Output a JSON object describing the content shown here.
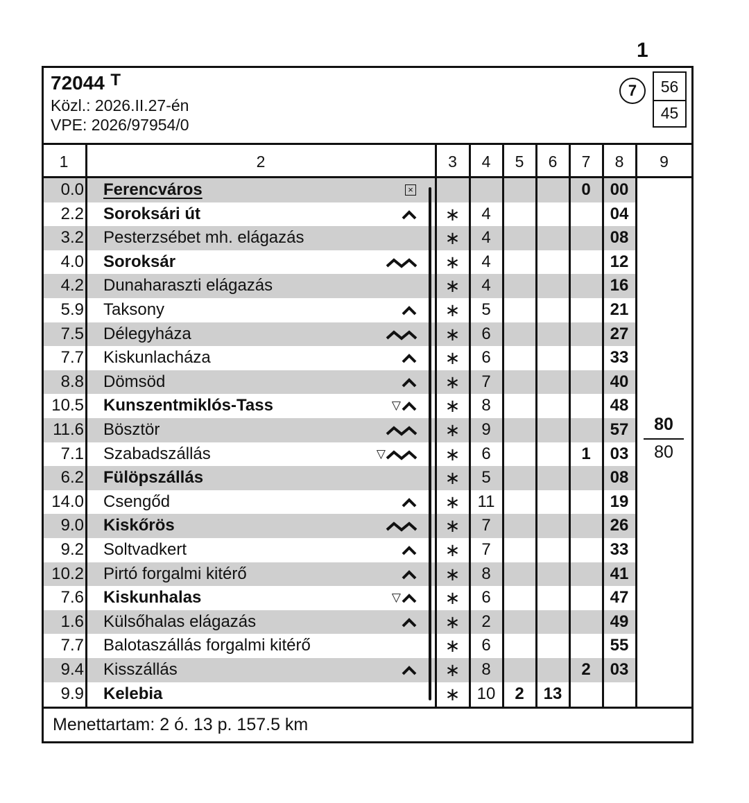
{
  "page_number": "1",
  "train": {
    "number": "72044",
    "suffix": "T",
    "notice": "Közl.: 2026.II.27-én",
    "vpe": "VPE: 2026/97954/0",
    "circle_value": "7",
    "box_top": "56",
    "box_bottom": "45"
  },
  "columns": [
    "1",
    "2",
    "3",
    "4",
    "5",
    "6",
    "7",
    "8",
    "9"
  ],
  "speed": {
    "top": "80",
    "bottom": "80"
  },
  "rows": [
    {
      "km": "0.0",
      "name": "Ferencváros",
      "bold": true,
      "underline": true,
      "sym": "box",
      "c3": "",
      "c4": "",
      "c5": "",
      "c6": "",
      "c7": "0",
      "c8": "00"
    },
    {
      "km": "2.2",
      "name": "Soroksári út",
      "bold": true,
      "sym": "single",
      "c3": "∗",
      "c4": "4",
      "c5": "",
      "c6": "",
      "c7": "",
      "c8": "04"
    },
    {
      "km": "3.2",
      "name": "Pesterzsébet mh. elágazás",
      "bold": false,
      "sym": "",
      "c3": "∗",
      "c4": "4",
      "c5": "",
      "c6": "",
      "c7": "",
      "c8": "08"
    },
    {
      "km": "4.0",
      "name": "Soroksár",
      "bold": true,
      "sym": "double",
      "c3": "∗",
      "c4": "4",
      "c5": "",
      "c6": "",
      "c7": "",
      "c8": "12"
    },
    {
      "km": "4.2",
      "name": "Dunaharaszti elágazás",
      "bold": false,
      "sym": "",
      "c3": "∗",
      "c4": "4",
      "c5": "",
      "c6": "",
      "c7": "",
      "c8": "16"
    },
    {
      "km": "5.9",
      "name": "Taksony",
      "bold": false,
      "sym": "single",
      "c3": "∗",
      "c4": "5",
      "c5": "",
      "c6": "",
      "c7": "",
      "c8": "21"
    },
    {
      "km": "7.5",
      "name": "Délegyháza",
      "bold": false,
      "sym": "double",
      "c3": "∗",
      "c4": "6",
      "c5": "",
      "c6": "",
      "c7": "",
      "c8": "27"
    },
    {
      "km": "7.7",
      "name": "Kiskunlacháza",
      "bold": false,
      "sym": "single",
      "c3": "∗",
      "c4": "6",
      "c5": "",
      "c6": "",
      "c7": "",
      "c8": "33"
    },
    {
      "km": "8.8",
      "name": "Dömsöd",
      "bold": false,
      "sym": "single",
      "c3": "∗",
      "c4": "7",
      "c5": "",
      "c6": "",
      "c7": "",
      "c8": "40"
    },
    {
      "km": "10.5",
      "name": "Kunszentmiklós-Tass",
      "bold": true,
      "sym": "tri-single",
      "c3": "∗",
      "c4": "8",
      "c5": "",
      "c6": "",
      "c7": "",
      "c8": "48"
    },
    {
      "km": "11.6",
      "name": "Bösztör",
      "bold": false,
      "sym": "double",
      "c3": "∗",
      "c4": "9",
      "c5": "",
      "c6": "",
      "c7": "",
      "c8": "57"
    },
    {
      "km": "7.1",
      "name": "Szabadszállás",
      "bold": false,
      "sym": "tri-double",
      "c3": "∗",
      "c4": "6",
      "c5": "",
      "c6": "",
      "c7": "1",
      "c8": "03"
    },
    {
      "km": "6.2",
      "name": "Fülöpszállás",
      "bold": true,
      "sym": "",
      "c3": "∗",
      "c4": "5",
      "c5": "",
      "c6": "",
      "c7": "",
      "c8": "08"
    },
    {
      "km": "14.0",
      "name": "Csengőd",
      "bold": false,
      "sym": "single",
      "c3": "∗",
      "c4": "11",
      "c5": "",
      "c6": "",
      "c7": "",
      "c8": "19"
    },
    {
      "km": "9.0",
      "name": "Kiskőrös",
      "bold": true,
      "sym": "double",
      "c3": "∗",
      "c4": "7",
      "c5": "",
      "c6": "",
      "c7": "",
      "c8": "26"
    },
    {
      "km": "9.2",
      "name": "Soltvadkert",
      "bold": false,
      "sym": "single",
      "c3": "∗",
      "c4": "7",
      "c5": "",
      "c6": "",
      "c7": "",
      "c8": "33"
    },
    {
      "km": "10.2",
      "name": "Pirtó forgalmi kitérő",
      "bold": false,
      "sym": "single",
      "c3": "∗",
      "c4": "8",
      "c5": "",
      "c6": "",
      "c7": "",
      "c8": "41"
    },
    {
      "km": "7.6",
      "name": "Kiskunhalas",
      "bold": true,
      "sym": "tri-single",
      "c3": "∗",
      "c4": "6",
      "c5": "",
      "c6": "",
      "c7": "",
      "c8": "47"
    },
    {
      "km": "1.6",
      "name": "Külsőhalas elágazás",
      "bold": false,
      "sym": "single",
      "c3": "∗",
      "c4": "2",
      "c5": "",
      "c6": "",
      "c7": "",
      "c8": "49"
    },
    {
      "km": "7.7",
      "name": "Balotaszállás forgalmi kitérő",
      "bold": false,
      "sym": "",
      "c3": "∗",
      "c4": "6",
      "c5": "",
      "c6": "",
      "c7": "",
      "c8": "55"
    },
    {
      "km": "9.4",
      "name": "Kisszállás",
      "bold": false,
      "sym": "single",
      "c3": "∗",
      "c4": "8",
      "c5": "",
      "c6": "",
      "c7": "2",
      "c8": "03"
    },
    {
      "km": "9.9",
      "name": "Kelebia",
      "bold": true,
      "sym": "",
      "c3": "∗",
      "c4": "10",
      "c5": "2",
      "c6": "13",
      "c7": "",
      "c8": ""
    }
  ],
  "footer": "Menettartam: 2 ó. 13 p. 157.5 km"
}
